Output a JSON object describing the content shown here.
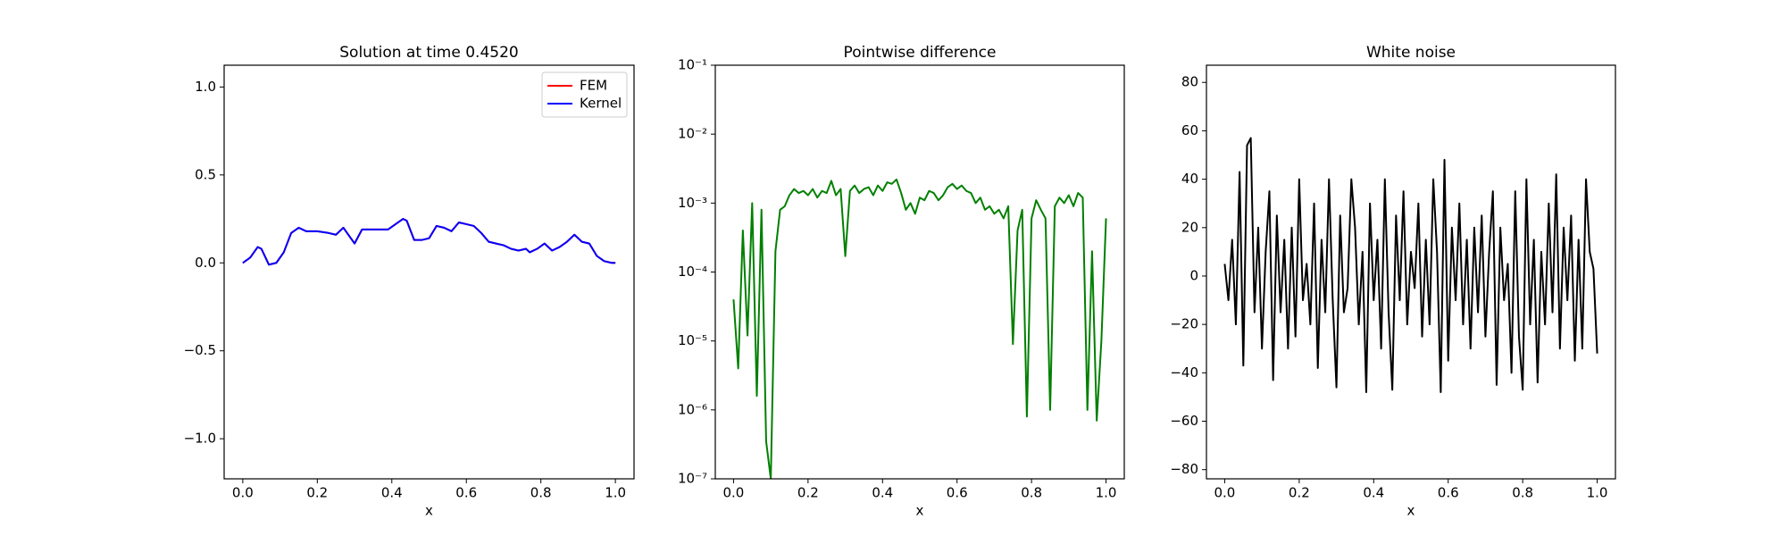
{
  "chart_data": [
    {
      "type": "line",
      "title": "Solution at time 0.4520",
      "xlabel": "x",
      "legend": "upper right",
      "xlim": [
        -0.05,
        1.05
      ],
      "ylim": [
        -1.228,
        1.124
      ],
      "xticks": [
        {
          "value": 0,
          "label": "0.0"
        },
        0.2,
        0.4,
        0.6,
        0.8,
        {
          "value": 1,
          "label": "1.0"
        }
      ],
      "yticks": [
        {
          "value": -1,
          "label": "−1.0"
        },
        {
          "value": -0.5,
          "label": "−0.5"
        },
        {
          "value": 0,
          "label": "0.0"
        },
        0.5,
        {
          "value": 1,
          "label": "1.0"
        }
      ],
      "x": [
        0,
        0.02,
        0.04,
        0.05,
        0.07,
        0.09,
        0.11,
        0.13,
        0.15,
        0.17,
        0.2,
        0.23,
        0.25,
        0.27,
        0.29,
        0.3,
        0.32,
        0.34,
        0.37,
        0.39,
        0.41,
        0.43,
        0.44,
        0.46,
        0.48,
        0.5,
        0.52,
        0.54,
        0.56,
        0.58,
        0.6,
        0.62,
        0.64,
        0.66,
        0.68,
        0.7,
        0.72,
        0.74,
        0.76,
        0.77,
        0.79,
        0.81,
        0.83,
        0.85,
        0.87,
        0.89,
        0.91,
        0.93,
        0.95,
        0.97,
        0.99,
        1
      ],
      "series": [
        {
          "name": "FEM",
          "color": "#ff0000",
          "values": [
            0,
            0.03,
            0.09,
            0.08,
            -0.01,
            0,
            0.06,
            0.17,
            0.2,
            0.18,
            0.18,
            0.17,
            0.16,
            0.2,
            0.14,
            0.11,
            0.19,
            0.19,
            0.19,
            0.19,
            0.22,
            0.25,
            0.24,
            0.13,
            0.13,
            0.14,
            0.21,
            0.2,
            0.18,
            0.23,
            0.22,
            0.21,
            0.17,
            0.12,
            0.11,
            0.1,
            0.08,
            0.07,
            0.08,
            0.06,
            0.08,
            0.11,
            0.07,
            0.09,
            0.12,
            0.16,
            0.12,
            0.11,
            0.04,
            0.01,
            0,
            0
          ]
        },
        {
          "name": "Kernel",
          "color": "#0000ff",
          "values": [
            0,
            0.03,
            0.09,
            0.08,
            -0.01,
            0,
            0.06,
            0.17,
            0.2,
            0.18,
            0.18,
            0.17,
            0.16,
            0.2,
            0.14,
            0.11,
            0.19,
            0.19,
            0.19,
            0.19,
            0.22,
            0.25,
            0.24,
            0.13,
            0.13,
            0.14,
            0.21,
            0.2,
            0.18,
            0.23,
            0.22,
            0.21,
            0.17,
            0.12,
            0.11,
            0.1,
            0.08,
            0.07,
            0.08,
            0.06,
            0.08,
            0.11,
            0.07,
            0.09,
            0.12,
            0.16,
            0.12,
            0.11,
            0.04,
            0.01,
            0,
            0
          ]
        }
      ]
    },
    {
      "type": "line",
      "title": "Pointwise difference",
      "xlabel": "x",
      "yscale": "log",
      "xlim": [
        -0.049,
        1.049
      ],
      "ylim": [
        1e-07,
        0.1
      ],
      "xticks": [
        {
          "value": 0,
          "label": "0.0"
        },
        0.2,
        0.4,
        0.6,
        0.8,
        {
          "value": 1,
          "label": "1.0"
        }
      ],
      "yticks": [
        {
          "value": 1e-07,
          "label": "10⁻⁷"
        },
        {
          "value": 1e-06,
          "label": "10⁻⁶"
        },
        {
          "value": 1e-05,
          "label": "10⁻⁵"
        },
        {
          "value": 0.0001,
          "label": "10⁻⁴"
        },
        {
          "value": 0.001,
          "label": "10⁻³"
        },
        {
          "value": 0.01,
          "label": "10⁻²"
        },
        {
          "value": 0.1,
          "label": "10⁻¹"
        }
      ],
      "x": [
        0,
        0.0125,
        0.025,
        0.0375,
        0.05,
        0.0625,
        0.075,
        0.0875,
        0.1,
        0.1125,
        0.125,
        0.1375,
        0.15,
        0.1625,
        0.175,
        0.1875,
        0.2,
        0.2125,
        0.225,
        0.2375,
        0.25,
        0.2625,
        0.275,
        0.2875,
        0.3,
        0.3125,
        0.325,
        0.3375,
        0.35,
        0.3625,
        0.375,
        0.3875,
        0.4,
        0.4125,
        0.425,
        0.4375,
        0.45,
        0.4625,
        0.475,
        0.4875,
        0.5,
        0.5125,
        0.525,
        0.5375,
        0.55,
        0.5625,
        0.575,
        0.5875,
        0.6,
        0.6125,
        0.625,
        0.6375,
        0.65,
        0.6625,
        0.675,
        0.6875,
        0.7,
        0.7125,
        0.725,
        0.7375,
        0.75,
        0.7625,
        0.775,
        0.7875,
        0.8,
        0.8125,
        0.825,
        0.8375,
        0.85,
        0.8625,
        0.875,
        0.8875,
        0.9,
        0.9125,
        0.925,
        0.9375,
        0.95,
        0.9625,
        0.975,
        0.9875,
        1
      ],
      "series": [
        {
          "color": "#008000",
          "values": [
            4e-05,
            4e-06,
            0.0004,
            1.2e-05,
            0.001,
            1.6e-06,
            0.0008,
            3.5e-07,
            1e-07,
            0.0002,
            0.0008,
            0.0009,
            0.0013,
            0.0016,
            0.0014,
            0.0015,
            0.0013,
            0.0016,
            0.0012,
            0.0015,
            0.0014,
            0.0021,
            0.0013,
            0.0016,
            0.00017,
            0.0015,
            0.0018,
            0.0014,
            0.0016,
            0.0017,
            0.0013,
            0.0018,
            0.0015,
            0.002,
            0.0019,
            0.0022,
            0.0014,
            0.0008,
            0.001,
            0.0007,
            0.0012,
            0.0011,
            0.0015,
            0.0014,
            0.0011,
            0.0013,
            0.0017,
            0.0019,
            0.0016,
            0.0018,
            0.0015,
            0.0014,
            0.001,
            0.0012,
            0.0008,
            0.0009,
            0.0007,
            0.0008,
            0.0006,
            0.0009,
            9e-06,
            0.0004,
            0.0008,
            8e-07,
            0.0006,
            0.0011,
            0.0008,
            0.0006,
            1e-06,
            0.0009,
            0.0012,
            0.001,
            0.0013,
            0.0009,
            0.0014,
            0.0012,
            1e-06,
            0.0002,
            7e-07,
            1e-05,
            0.0006
          ]
        }
      ]
    },
    {
      "type": "line",
      "title": "White noise",
      "xlabel": "x",
      "xlim": [
        -0.049,
        1.049
      ],
      "ylim": [
        -83.8,
        87.1
      ],
      "xticks": [
        {
          "value": 0,
          "label": "0.0"
        },
        0.2,
        0.4,
        0.6,
        0.8,
        {
          "value": 1,
          "label": "1.0"
        }
      ],
      "yticks": [
        {
          "value": -80,
          "label": "−80"
        },
        {
          "value": -60,
          "label": "−60"
        },
        {
          "value": -40,
          "label": "−40"
        },
        {
          "value": -20,
          "label": "−20"
        },
        0,
        20,
        40,
        60,
        80
      ],
      "x": [
        0,
        0.01,
        0.02,
        0.03,
        0.04,
        0.05,
        0.06,
        0.07,
        0.08,
        0.09,
        0.1,
        0.11,
        0.12,
        0.13,
        0.14,
        0.15,
        0.16,
        0.17,
        0.18,
        0.19,
        0.2,
        0.21,
        0.22,
        0.23,
        0.24,
        0.25,
        0.26,
        0.27,
        0.28,
        0.29,
        0.3,
        0.31,
        0.32,
        0.33,
        0.34,
        0.35,
        0.36,
        0.37,
        0.38,
        0.39,
        0.4,
        0.41,
        0.42,
        0.43,
        0.44,
        0.45,
        0.46,
        0.47,
        0.48,
        0.49,
        0.5,
        0.51,
        0.52,
        0.53,
        0.54,
        0.55,
        0.56,
        0.57,
        0.58,
        0.59,
        0.6,
        0.61,
        0.62,
        0.63,
        0.64,
        0.65,
        0.66,
        0.67,
        0.68,
        0.69,
        0.7,
        0.71,
        0.72,
        0.73,
        0.74,
        0.75,
        0.76,
        0.77,
        0.78,
        0.79,
        0.8,
        0.81,
        0.82,
        0.83,
        0.84,
        0.85,
        0.86,
        0.87,
        0.88,
        0.89,
        0.9,
        0.91,
        0.92,
        0.93,
        0.94,
        0.95,
        0.96,
        0.97,
        0.98,
        0.99,
        1
      ],
      "series": [
        {
          "color": "#000000",
          "values": [
            5,
            -10,
            15,
            -20,
            43,
            -37,
            54,
            57,
            -15,
            20,
            -30,
            10,
            35,
            -43,
            25,
            -15,
            15,
            -30,
            20,
            -25,
            40,
            -10,
            5,
            -20,
            30,
            -38,
            15,
            -15,
            40,
            -10,
            -46,
            25,
            -15,
            -5,
            40,
            20,
            -20,
            10,
            -48,
            30,
            -10,
            15,
            -30,
            40,
            -15,
            -47,
            25,
            -10,
            35,
            -20,
            10,
            -5,
            30,
            -25,
            15,
            -20,
            40,
            10,
            -48,
            48,
            -35,
            20,
            -10,
            30,
            -20,
            15,
            -30,
            20,
            -15,
            25,
            -25,
            10,
            35,
            -45,
            20,
            -10,
            5,
            -40,
            35,
            -25,
            -47,
            40,
            -20,
            15,
            -44,
            10,
            -20,
            30,
            -15,
            42,
            -30,
            20,
            -10,
            25,
            -35,
            15,
            -30,
            40,
            10,
            3,
            -32
          ]
        }
      ]
    }
  ]
}
